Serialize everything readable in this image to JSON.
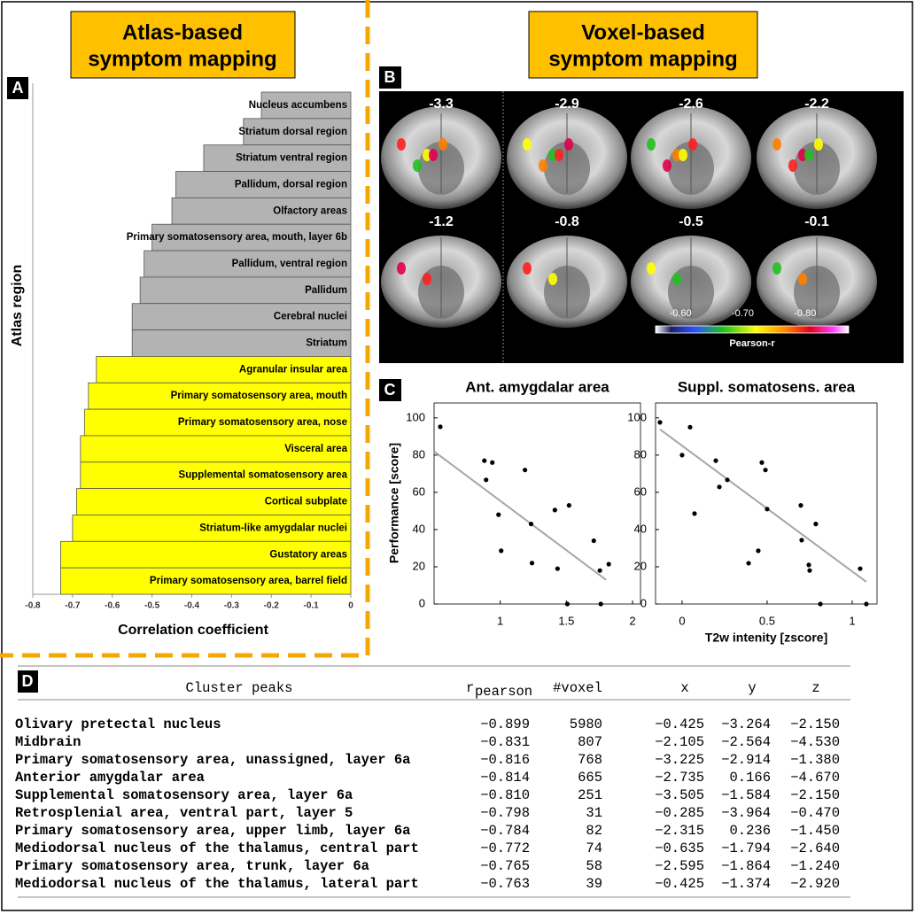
{
  "panel_labels": [
    "A",
    "B",
    "C",
    "D"
  ],
  "headings": {
    "atlas": [
      "Atlas-based",
      "symptom mapping"
    ],
    "voxel": [
      "Voxel-based",
      "symptom mapping"
    ]
  },
  "brain": {
    "slices": [
      -3.3,
      -2.9,
      -2.6,
      -2.2,
      -1.2,
      -0.8,
      -0.5,
      -0.1
    ],
    "colorbar": {
      "lim": [
        -0.56,
        -0.87
      ],
      "ticks": [
        {
          "value": -0.6,
          "label": "-0.60"
        },
        {
          "value": -0.7,
          "label": "-0.70"
        },
        {
          "value": -0.8,
          "label": "-0.80"
        }
      ],
      "label": "Pearson-r"
    }
  },
  "chart_data": [
    {
      "type": "hbar",
      "xlabel": "Correlation coefficient",
      "ylabel": "Atlas region",
      "categories": [
        "Nucleus accumbens",
        "Striatum dorsal region",
        "Striatum ventral region",
        "Pallidum, dorsal region",
        "Olfactory areas",
        "Primary somatosensory area, mouth, layer 6b",
        "Pallidum, ventral region",
        "Pallidum",
        "Cerebral nuclei",
        "Striatum",
        "Agranular insular area",
        "Primary somatosensory area, mouth",
        "Primary somatosensory area, nose",
        "Visceral area",
        "Supplemental somatosensory area",
        "Cortical subplate",
        "Striatum-like amygdalar nuclei",
        "Gustatory areas",
        "Primary somatosensory area, barrel field"
      ],
      "values": [
        -0.225,
        -0.27,
        -0.37,
        -0.44,
        -0.45,
        -0.5,
        -0.52,
        -0.53,
        -0.55,
        -0.55,
        -0.64,
        -0.66,
        -0.67,
        -0.68,
        -0.68,
        -0.69,
        -0.7,
        -0.73,
        -0.73
      ],
      "colors": [
        "#b3b3b3",
        "#b3b3b3",
        "#b3b3b3",
        "#b3b3b3",
        "#b3b3b3",
        "#b3b3b3",
        "#b3b3b3",
        "#b3b3b3",
        "#b3b3b3",
        "#b3b3b3",
        "#ffff00",
        "#ffff00",
        "#ffff00",
        "#ffff00",
        "#ffff00",
        "#ffff00",
        "#ffff00",
        "#ffff00",
        "#ffff00"
      ],
      "xlim": [
        -0.8,
        0
      ],
      "xticks": [
        -0.8,
        -0.7,
        -0.6,
        -0.5,
        -0.4,
        -0.3,
        -0.2,
        -0.1,
        0
      ]
    },
    {
      "type": "scatter",
      "title": "Ant. amygdalar area",
      "ylabel": "Performance [score]",
      "x": [
        0.547,
        0.88,
        0.893,
        0.94,
        0.987,
        1.007,
        1.187,
        1.233,
        1.24,
        1.413,
        1.433,
        1.52,
        1.507,
        1.707,
        1.753,
        1.76,
        1.82
      ],
      "y": [
        95.2,
        77,
        66.7,
        76,
        48,
        28.6,
        72,
        43,
        22,
        50.5,
        19,
        53,
        0,
        34,
        18,
        0,
        21.4
      ],
      "fit": {
        "x": [
          0.5,
          1.8
        ],
        "y": [
          82,
          13
        ]
      },
      "color": "#000000",
      "fit_color": "#a6a6a6",
      "xlim": [
        0.5,
        2.06
      ],
      "ylim": [
        0,
        108
      ],
      "xticks": [
        1,
        1.5,
        2
      ],
      "yticks": [
        0,
        20,
        40,
        60,
        80,
        100
      ]
    },
    {
      "type": "scatter",
      "title": "Suppl. somatosens. area",
      "xlabel": "T2w intenity [zscore]",
      "x": [
        -0.13,
        0,
        0.047,
        0.073,
        0.198,
        0.219,
        0.266,
        0.391,
        0.448,
        0.469,
        0.49,
        0.5,
        0.698,
        0.703,
        0.745,
        0.75,
        0.786,
        0.813,
        1.047,
        1.083
      ],
      "y": [
        97.6,
        80,
        95,
        48.6,
        77,
        62.9,
        66.7,
        21.9,
        28.6,
        76,
        72,
        51,
        53,
        34.3,
        21,
        18,
        43,
        0,
        19,
        0
      ],
      "fit": {
        "x": [
          -0.13,
          1.083
        ],
        "y": [
          93.8,
          11.9
        ]
      },
      "color": "#000000",
      "fit_color": "#a6a6a6",
      "xlim": [
        -0.156,
        1.146
      ],
      "ylim": [
        0,
        108
      ],
      "xticks": [
        0,
        0.5,
        1
      ],
      "yticks": [
        0,
        20,
        40,
        60,
        80,
        100
      ]
    }
  ],
  "table": {
    "header": {
      "name": "Cluster peaks",
      "r": "r",
      "r_sub": "pearson",
      "voxel": "#voxel",
      "x": "x",
      "y": "y",
      "z": "z"
    },
    "rows": [
      [
        "Olivary pretectal nucleus",
        "−0.899",
        "5980",
        "−0.425",
        "−3.264",
        "−2.150"
      ],
      [
        "Midbrain",
        "−0.831",
        "807",
        "−2.105",
        "−2.564",
        "−4.530"
      ],
      [
        "Primary somatosensory area, unassigned, layer 6a",
        "−0.816",
        "768",
        "−3.225",
        "−2.914",
        "−1.380"
      ],
      [
        "Anterior amygdalar area",
        "−0.814",
        "665",
        "−2.735",
        "0.166",
        "−4.670"
      ],
      [
        "Supplemental somatosensory area, layer 6a",
        "−0.810",
        "251",
        "−3.505",
        "−1.584",
        "−2.150"
      ],
      [
        "Retrosplenial area, ventral part, layer 5",
        "−0.798",
        "31",
        "−0.285",
        "−3.964",
        "−0.470"
      ],
      [
        "Primary somatosensory area, upper limb, layer 6a",
        "−0.784",
        "82",
        "−2.315",
        "0.236",
        "−1.450"
      ],
      [
        "Mediodorsal nucleus of the thalamus, central part",
        "−0.772",
        "74",
        "−0.635",
        "−1.794",
        "−2.640"
      ],
      [
        "Primary somatosensory area, trunk, layer 6a",
        "−0.765",
        "58",
        "−2.595",
        "−1.864",
        "−1.240"
      ],
      [
        "Mediodorsal nucleus of the thalamus, lateral part",
        "−0.763",
        "39",
        "−0.425",
        "−1.374",
        "−2.920"
      ]
    ]
  }
}
